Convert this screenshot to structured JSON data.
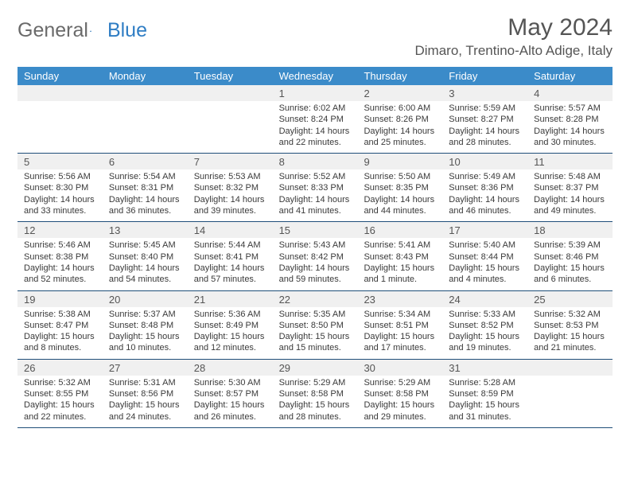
{
  "logo": {
    "text1": "General",
    "text2": "Blue"
  },
  "title": "May 2024",
  "location": "Dimaro, Trentino-Alto Adige, Italy",
  "header_bg": "#3b8bc9",
  "daynum_bg": "#f0f0f0",
  "border_color": "#1f4e79",
  "days": [
    "Sunday",
    "Monday",
    "Tuesday",
    "Wednesday",
    "Thursday",
    "Friday",
    "Saturday"
  ],
  "weeks": [
    {
      "nums": [
        "",
        "",
        "",
        "1",
        "2",
        "3",
        "4"
      ],
      "cells": [
        null,
        null,
        null,
        {
          "r": "Sunrise: 6:02 AM",
          "s": "Sunset: 8:24 PM",
          "d1": "Daylight: 14 hours",
          "d2": "and 22 minutes."
        },
        {
          "r": "Sunrise: 6:00 AM",
          "s": "Sunset: 8:26 PM",
          "d1": "Daylight: 14 hours",
          "d2": "and 25 minutes."
        },
        {
          "r": "Sunrise: 5:59 AM",
          "s": "Sunset: 8:27 PM",
          "d1": "Daylight: 14 hours",
          "d2": "and 28 minutes."
        },
        {
          "r": "Sunrise: 5:57 AM",
          "s": "Sunset: 8:28 PM",
          "d1": "Daylight: 14 hours",
          "d2": "and 30 minutes."
        }
      ]
    },
    {
      "nums": [
        "5",
        "6",
        "7",
        "8",
        "9",
        "10",
        "11"
      ],
      "cells": [
        {
          "r": "Sunrise: 5:56 AM",
          "s": "Sunset: 8:30 PM",
          "d1": "Daylight: 14 hours",
          "d2": "and 33 minutes."
        },
        {
          "r": "Sunrise: 5:54 AM",
          "s": "Sunset: 8:31 PM",
          "d1": "Daylight: 14 hours",
          "d2": "and 36 minutes."
        },
        {
          "r": "Sunrise: 5:53 AM",
          "s": "Sunset: 8:32 PM",
          "d1": "Daylight: 14 hours",
          "d2": "and 39 minutes."
        },
        {
          "r": "Sunrise: 5:52 AM",
          "s": "Sunset: 8:33 PM",
          "d1": "Daylight: 14 hours",
          "d2": "and 41 minutes."
        },
        {
          "r": "Sunrise: 5:50 AM",
          "s": "Sunset: 8:35 PM",
          "d1": "Daylight: 14 hours",
          "d2": "and 44 minutes."
        },
        {
          "r": "Sunrise: 5:49 AM",
          "s": "Sunset: 8:36 PM",
          "d1": "Daylight: 14 hours",
          "d2": "and 46 minutes."
        },
        {
          "r": "Sunrise: 5:48 AM",
          "s": "Sunset: 8:37 PM",
          "d1": "Daylight: 14 hours",
          "d2": "and 49 minutes."
        }
      ]
    },
    {
      "nums": [
        "12",
        "13",
        "14",
        "15",
        "16",
        "17",
        "18"
      ],
      "cells": [
        {
          "r": "Sunrise: 5:46 AM",
          "s": "Sunset: 8:38 PM",
          "d1": "Daylight: 14 hours",
          "d2": "and 52 minutes."
        },
        {
          "r": "Sunrise: 5:45 AM",
          "s": "Sunset: 8:40 PM",
          "d1": "Daylight: 14 hours",
          "d2": "and 54 minutes."
        },
        {
          "r": "Sunrise: 5:44 AM",
          "s": "Sunset: 8:41 PM",
          "d1": "Daylight: 14 hours",
          "d2": "and 57 minutes."
        },
        {
          "r": "Sunrise: 5:43 AM",
          "s": "Sunset: 8:42 PM",
          "d1": "Daylight: 14 hours",
          "d2": "and 59 minutes."
        },
        {
          "r": "Sunrise: 5:41 AM",
          "s": "Sunset: 8:43 PM",
          "d1": "Daylight: 15 hours",
          "d2": "and 1 minute."
        },
        {
          "r": "Sunrise: 5:40 AM",
          "s": "Sunset: 8:44 PM",
          "d1": "Daylight: 15 hours",
          "d2": "and 4 minutes."
        },
        {
          "r": "Sunrise: 5:39 AM",
          "s": "Sunset: 8:46 PM",
          "d1": "Daylight: 15 hours",
          "d2": "and 6 minutes."
        }
      ]
    },
    {
      "nums": [
        "19",
        "20",
        "21",
        "22",
        "23",
        "24",
        "25"
      ],
      "cells": [
        {
          "r": "Sunrise: 5:38 AM",
          "s": "Sunset: 8:47 PM",
          "d1": "Daylight: 15 hours",
          "d2": "and 8 minutes."
        },
        {
          "r": "Sunrise: 5:37 AM",
          "s": "Sunset: 8:48 PM",
          "d1": "Daylight: 15 hours",
          "d2": "and 10 minutes."
        },
        {
          "r": "Sunrise: 5:36 AM",
          "s": "Sunset: 8:49 PM",
          "d1": "Daylight: 15 hours",
          "d2": "and 12 minutes."
        },
        {
          "r": "Sunrise: 5:35 AM",
          "s": "Sunset: 8:50 PM",
          "d1": "Daylight: 15 hours",
          "d2": "and 15 minutes."
        },
        {
          "r": "Sunrise: 5:34 AM",
          "s": "Sunset: 8:51 PM",
          "d1": "Daylight: 15 hours",
          "d2": "and 17 minutes."
        },
        {
          "r": "Sunrise: 5:33 AM",
          "s": "Sunset: 8:52 PM",
          "d1": "Daylight: 15 hours",
          "d2": "and 19 minutes."
        },
        {
          "r": "Sunrise: 5:32 AM",
          "s": "Sunset: 8:53 PM",
          "d1": "Daylight: 15 hours",
          "d2": "and 21 minutes."
        }
      ]
    },
    {
      "nums": [
        "26",
        "27",
        "28",
        "29",
        "30",
        "31",
        ""
      ],
      "cells": [
        {
          "r": "Sunrise: 5:32 AM",
          "s": "Sunset: 8:55 PM",
          "d1": "Daylight: 15 hours",
          "d2": "and 22 minutes."
        },
        {
          "r": "Sunrise: 5:31 AM",
          "s": "Sunset: 8:56 PM",
          "d1": "Daylight: 15 hours",
          "d2": "and 24 minutes."
        },
        {
          "r": "Sunrise: 5:30 AM",
          "s": "Sunset: 8:57 PM",
          "d1": "Daylight: 15 hours",
          "d2": "and 26 minutes."
        },
        {
          "r": "Sunrise: 5:29 AM",
          "s": "Sunset: 8:58 PM",
          "d1": "Daylight: 15 hours",
          "d2": "and 28 minutes."
        },
        {
          "r": "Sunrise: 5:29 AM",
          "s": "Sunset: 8:58 PM",
          "d1": "Daylight: 15 hours",
          "d2": "and 29 minutes."
        },
        {
          "r": "Sunrise: 5:28 AM",
          "s": "Sunset: 8:59 PM",
          "d1": "Daylight: 15 hours",
          "d2": "and 31 minutes."
        },
        null
      ]
    }
  ]
}
